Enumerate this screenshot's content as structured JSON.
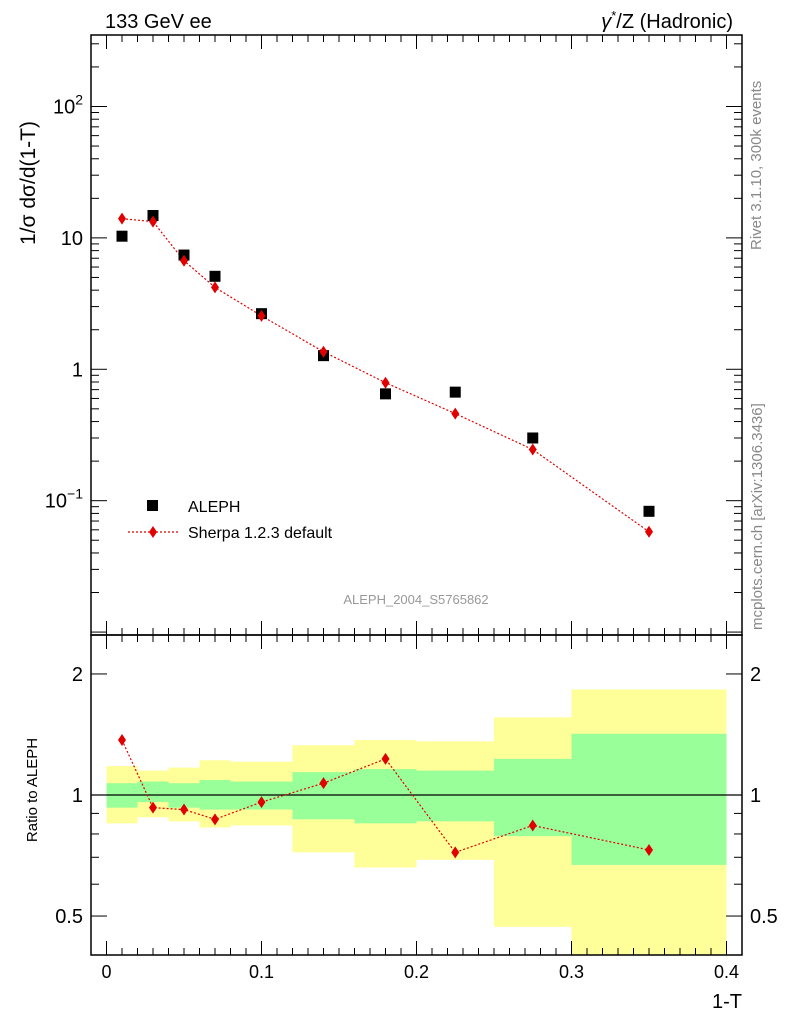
{
  "header": {
    "left": "133 GeV ee",
    "right_prefix": "γ",
    "right_sup": "*",
    "right_suffix": "/Z (Hadronic)"
  },
  "side_text": {
    "rivet": "Rivet 3.1.10,  300k events",
    "mcplots": "mcplots.cern.ch [arXiv:1306.3436]"
  },
  "watermark": "ALEPH_2004_S5765862",
  "ylabel_main": "1/σ  dσ/d(1-T)",
  "ylabel_ratio": "Ratio to ALEPH",
  "xlabel": "1-T",
  "legend": [
    {
      "label": "ALEPH",
      "marker": "square",
      "color": "#000000"
    },
    {
      "label": "Sherpa 1.2.3 default",
      "marker": "diamond",
      "color": "#e00000"
    }
  ],
  "colors": {
    "data": "#000000",
    "mc": "#e00000",
    "band_inner": "#99ff99",
    "band_outer": "#ffff99"
  },
  "chart_data": [
    {
      "type": "scatter",
      "panel": "main",
      "x_scale": "linear",
      "y_scale": "log",
      "xlim": [
        -0.01,
        0.41
      ],
      "ylim": [
        0.0095,
        350
      ],
      "x_ticks": [
        0,
        0.1,
        0.2,
        0.3,
        0.4
      ],
      "y_ticks": [
        {
          "value": 0.1,
          "base": "10",
          "exp": "−1"
        },
        {
          "value": 1,
          "base": "1",
          "exp": ""
        },
        {
          "value": 10,
          "base": "10",
          "exp": ""
        },
        {
          "value": 100,
          "base": "10",
          "exp": "2"
        }
      ],
      "x": [
        0.01,
        0.03,
        0.05,
        0.07,
        0.1,
        0.14,
        0.18,
        0.225,
        0.275,
        0.35
      ],
      "bin_edges": [
        0.0,
        0.02,
        0.04,
        0.06,
        0.08,
        0.12,
        0.16,
        0.2,
        0.25,
        0.3,
        0.4
      ],
      "series": [
        {
          "name": "ALEPH",
          "values": [
            10.3,
            14.8,
            7.4,
            5.1,
            2.65,
            1.27,
            0.65,
            0.67,
            0.3,
            0.083
          ]
        },
        {
          "name": "Sherpa 1.2.3 default",
          "values": [
            14.0,
            13.3,
            6.7,
            4.2,
            2.55,
            1.36,
            0.79,
            0.46,
            0.245,
            0.058
          ]
        }
      ]
    },
    {
      "type": "line",
      "panel": "ratio",
      "x_scale": "linear",
      "y_scale": "log",
      "xlim": [
        -0.01,
        0.41
      ],
      "ylim": [
        0.4,
        2.5
      ],
      "y_ticks": [
        {
          "value": 0.5,
          "label": "0.5"
        },
        {
          "value": 1,
          "label": "1"
        },
        {
          "value": 2,
          "label": "2"
        }
      ],
      "x": [
        0.01,
        0.03,
        0.05,
        0.07,
        0.1,
        0.14,
        0.18,
        0.225,
        0.275,
        0.35
      ],
      "bin_edges": [
        0.0,
        0.02,
        0.04,
        0.06,
        0.08,
        0.12,
        0.16,
        0.2,
        0.25,
        0.3,
        0.4
      ],
      "band_inner": {
        "lo": [
          0.93,
          0.96,
          0.93,
          0.92,
          0.92,
          0.87,
          0.85,
          0.86,
          0.79,
          0.67
        ],
        "hi": [
          1.07,
          1.08,
          1.07,
          1.09,
          1.08,
          1.14,
          1.16,
          1.15,
          1.23,
          1.42
        ]
      },
      "band_outer": {
        "lo": [
          0.85,
          0.88,
          0.86,
          0.83,
          0.84,
          0.72,
          0.66,
          0.69,
          0.47,
          0.35
        ],
        "hi": [
          1.18,
          1.15,
          1.17,
          1.22,
          1.21,
          1.33,
          1.37,
          1.36,
          1.56,
          1.83
        ]
      },
      "series": [
        {
          "name": "Sherpa 1.2.3 default",
          "values": [
            1.37,
            0.93,
            0.92,
            0.87,
            0.96,
            1.07,
            1.23,
            0.72,
            0.84,
            0.73
          ]
        }
      ]
    }
  ]
}
